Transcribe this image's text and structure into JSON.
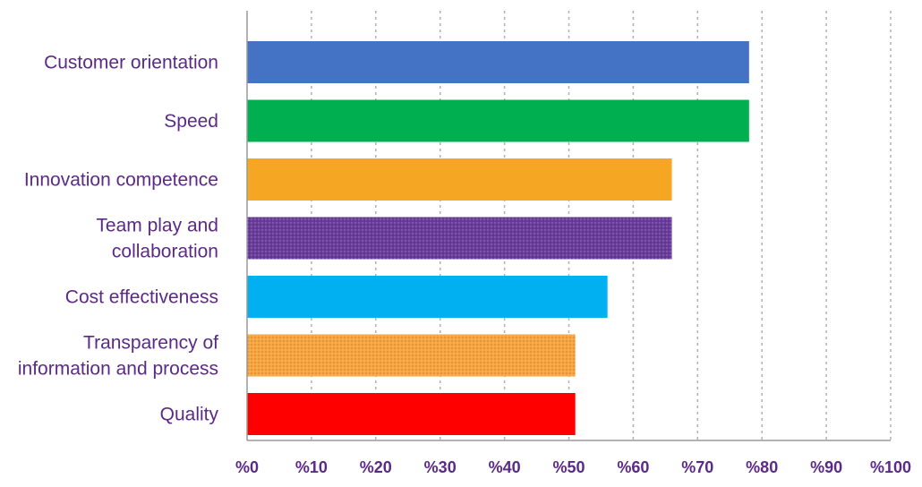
{
  "chart_data": {
    "type": "bar",
    "orientation": "horizontal",
    "categories": [
      "Customer orientation",
      "Speed",
      "Innovation competence",
      "Team play and collaboration",
      "Cost effectiveness",
      "Transparency of information and process",
      "Quality"
    ],
    "category_lines": [
      [
        "Customer orientation"
      ],
      [
        "Speed"
      ],
      [
        "Innovation competence"
      ],
      [
        "Team play and",
        "collaboration"
      ],
      [
        "Cost effectiveness"
      ],
      [
        "Transparency of",
        "information and process"
      ],
      [
        "Quality"
      ]
    ],
    "values": [
      78,
      78,
      66,
      66,
      56,
      51,
      51
    ],
    "colors": [
      "#4472c4",
      "#00b050",
      "#f5a623",
      "#6a3d9a",
      "#00b0f0",
      "#f4a03a",
      "#ff0000"
    ],
    "patterns": [
      "solid",
      "solid",
      "solid",
      "dotted",
      "solid",
      "dotted",
      "solid"
    ],
    "xlim": [
      0,
      100
    ],
    "xticks": [
      0,
      10,
      20,
      30,
      40,
      50,
      60,
      70,
      80,
      90,
      100
    ],
    "xtick_labels": [
      "%0",
      "%10",
      "%20",
      "%30",
      "%40",
      "%50",
      "%60",
      "%70",
      "%80",
      "%90",
      "%100"
    ],
    "grid": "vertical-dotted",
    "title": "",
    "xlabel": "",
    "ylabel": ""
  }
}
